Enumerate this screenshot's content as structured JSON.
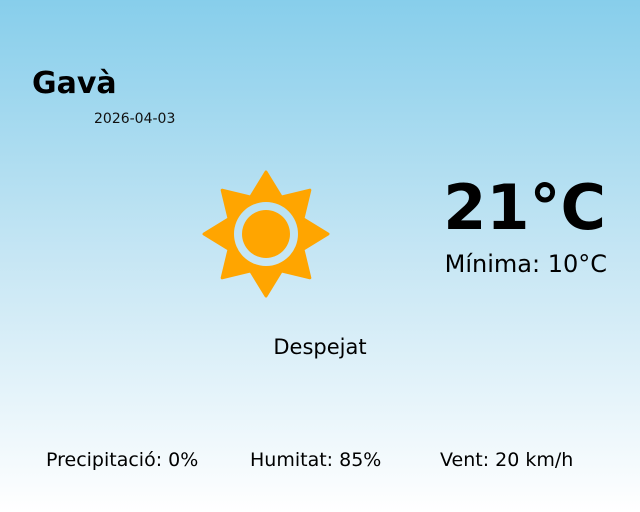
{
  "location": {
    "city": "Gavà",
    "date": "2026-04-03"
  },
  "current": {
    "temperature": "21°C",
    "minimum": "Mínima: 10°C",
    "condition": "Despejat",
    "icon": "sun-icon"
  },
  "details": {
    "precipitation": "Precipitació: 0%",
    "humidity": "Humitat: 85%",
    "wind": "Vent: 20 km/h"
  },
  "colors": {
    "sun": "#ffa500",
    "sky_top": "#87ceeb",
    "sky_bottom": "#ffffff"
  }
}
